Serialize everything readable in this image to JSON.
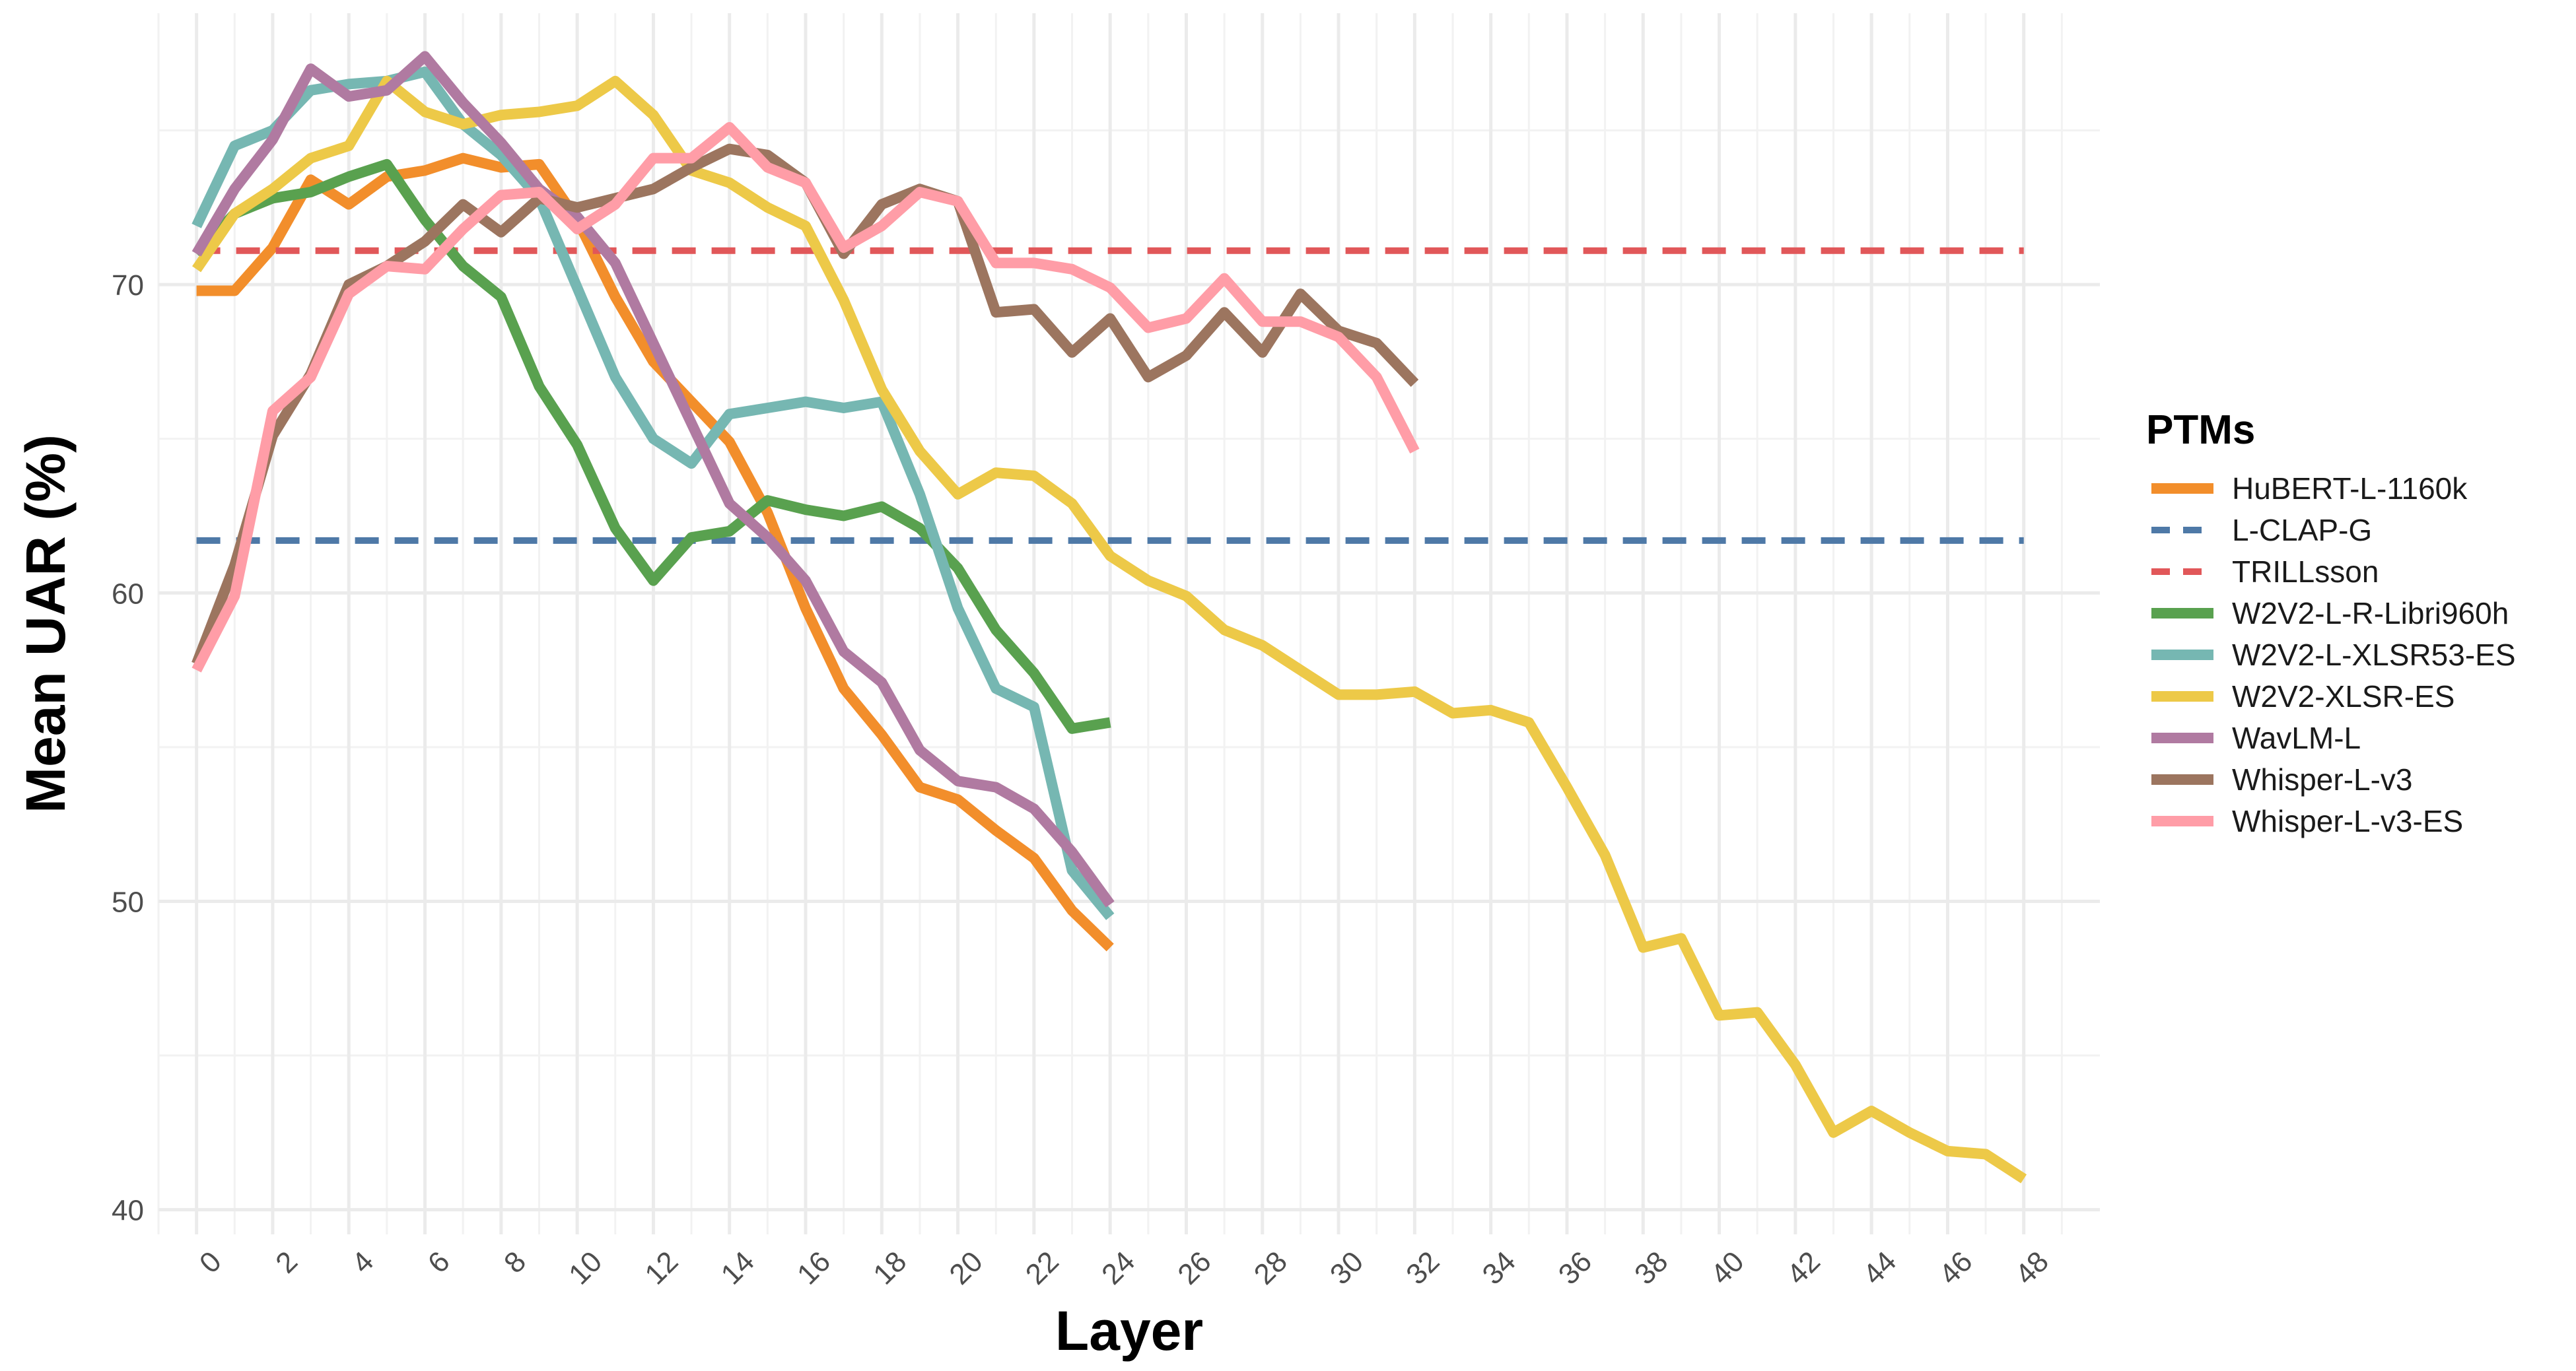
{
  "chart_data": {
    "type": "line",
    "title": "",
    "xlabel": "Layer",
    "ylabel": "Mean UAR (%)",
    "xlim": [
      -1,
      50
    ],
    "ylim": [
      39.2,
      78.8
    ],
    "x_ticks": [
      0,
      2,
      4,
      6,
      8,
      10,
      12,
      14,
      16,
      18,
      20,
      22,
      24,
      26,
      28,
      30,
      32,
      34,
      36,
      38,
      40,
      42,
      44,
      46,
      48
    ],
    "x_tick_labels": [
      "0",
      "2",
      "4",
      "6",
      "8",
      "10",
      "12",
      "14",
      "16",
      "18",
      "20",
      "22",
      "24",
      "26",
      "28",
      "30",
      "32",
      "34",
      "36",
      "38",
      "40",
      "42",
      "44",
      "46",
      "48"
    ],
    "y_ticks": [
      40,
      50,
      60,
      70
    ],
    "y_tick_labels": [
      "40",
      "50",
      "60",
      "70"
    ],
    "grid": true,
    "legend": {
      "title": "PTMs",
      "position": "right"
    },
    "series": [
      {
        "name": "HuBERT-L-1160k",
        "color": "#F28E2B",
        "style": "solid",
        "x": [
          0,
          1,
          2,
          3,
          4,
          5,
          6,
          7,
          8,
          9,
          10,
          11,
          12,
          13,
          14,
          15,
          16,
          17,
          18,
          19,
          20,
          21,
          22,
          23,
          24
        ],
        "y": [
          69.8,
          69.8,
          71.2,
          73.4,
          72.6,
          73.5,
          73.7,
          74.1,
          73.8,
          73.9,
          72.1,
          69.6,
          67.5,
          66.2,
          64.9,
          62.6,
          59.5,
          56.9,
          55.4,
          53.7,
          53.3,
          52.3,
          51.4,
          49.7,
          48.5
        ]
      },
      {
        "name": "L-CLAP-G",
        "color": "#4E79A7",
        "style": "dashed",
        "x": [
          0,
          48
        ],
        "y": [
          61.7,
          61.7
        ]
      },
      {
        "name": "TRILLsson",
        "color": "#E15759",
        "style": "dashed",
        "x": [
          0,
          48
        ],
        "y": [
          71.1,
          71.1
        ]
      },
      {
        "name": "W2V2-L-R-Libri960h",
        "color": "#59A14F",
        "style": "solid",
        "x": [
          0,
          1,
          2,
          3,
          4,
          5,
          6,
          7,
          8,
          9,
          10,
          11,
          12,
          13,
          14,
          15,
          16,
          17,
          18,
          19,
          20,
          21,
          22,
          23,
          24
        ],
        "y": [
          71.0,
          72.3,
          72.8,
          73.0,
          73.5,
          73.9,
          72.1,
          70.6,
          69.6,
          66.7,
          64.8,
          62.1,
          60.4,
          61.8,
          62.0,
          63.0,
          62.7,
          62.5,
          62.8,
          62.1,
          60.8,
          58.8,
          57.4,
          55.6,
          55.8
        ]
      },
      {
        "name": "W2V2-L-XLSR53-ES",
        "color": "#76B7B2",
        "style": "solid",
        "x": [
          0,
          1,
          2,
          3,
          4,
          5,
          6,
          7,
          8,
          9,
          10,
          11,
          12,
          13,
          14,
          15,
          16,
          17,
          18,
          19,
          20,
          21,
          22,
          23,
          24
        ],
        "y": [
          71.9,
          74.5,
          75.0,
          76.3,
          76.5,
          76.6,
          76.9,
          75.2,
          74.2,
          72.8,
          69.9,
          67.0,
          65.0,
          64.2,
          65.8,
          66.0,
          66.2,
          66.0,
          66.2,
          63.2,
          59.5,
          56.9,
          56.3,
          51.0,
          49.5
        ]
      },
      {
        "name": "W2V2-XLSR-ES",
        "color": "#EDC948",
        "style": "solid",
        "x": [
          0,
          1,
          2,
          3,
          4,
          5,
          6,
          7,
          8,
          9,
          10,
          11,
          12,
          13,
          14,
          15,
          16,
          17,
          18,
          19,
          20,
          21,
          22,
          23,
          24,
          25,
          26,
          27,
          28,
          29,
          30,
          31,
          32,
          33,
          34,
          35,
          36,
          37,
          38,
          39,
          40,
          41,
          42,
          43,
          44,
          45,
          46,
          47,
          48
        ],
        "y": [
          70.5,
          72.3,
          73.1,
          74.1,
          74.5,
          76.6,
          75.6,
          75.2,
          75.5,
          75.6,
          75.8,
          76.6,
          75.5,
          73.7,
          73.3,
          72.5,
          71.9,
          69.5,
          66.6,
          64.6,
          63.2,
          63.9,
          63.8,
          62.9,
          61.2,
          60.4,
          59.9,
          58.8,
          58.3,
          57.5,
          56.7,
          56.7,
          56.8,
          56.1,
          56.2,
          55.8,
          53.7,
          51.5,
          48.5,
          48.8,
          46.3,
          46.4,
          44.7,
          42.5,
          43.2,
          42.5,
          41.9,
          41.8,
          41.0
        ]
      },
      {
        "name": "WavLM-L",
        "color": "#B07AA1",
        "style": "solid",
        "x": [
          0,
          1,
          2,
          3,
          4,
          5,
          6,
          7,
          8,
          9,
          10,
          11,
          12,
          13,
          14,
          15,
          16,
          17,
          18,
          19,
          20,
          21,
          22,
          23,
          24
        ],
        "y": [
          71.0,
          73.1,
          74.7,
          77.0,
          76.1,
          76.3,
          77.4,
          75.9,
          74.6,
          73.1,
          72.2,
          70.7,
          68.1,
          65.5,
          62.9,
          61.8,
          60.4,
          58.1,
          57.1,
          54.9,
          53.9,
          53.7,
          53.0,
          51.6,
          49.9
        ]
      },
      {
        "name": "Whisper-L-v3",
        "color": "#9C755F",
        "style": "solid",
        "x": [
          0,
          1,
          2,
          3,
          4,
          5,
          6,
          7,
          8,
          9,
          10,
          11,
          12,
          13,
          14,
          15,
          16,
          17,
          18,
          19,
          20,
          21,
          22,
          23,
          24,
          25,
          26,
          27,
          28,
          29,
          30,
          31,
          32
        ],
        "y": [
          57.7,
          60.9,
          65.1,
          67.1,
          70.0,
          70.6,
          71.4,
          72.6,
          71.7,
          72.8,
          72.5,
          72.8,
          73.1,
          73.8,
          74.4,
          74.2,
          73.3,
          71.0,
          72.6,
          73.1,
          72.7,
          69.1,
          69.2,
          67.8,
          68.9,
          67.0,
          67.7,
          69.1,
          67.8,
          69.7,
          68.5,
          68.1,
          66.8
        ]
      },
      {
        "name": "Whisper-L-v3-ES",
        "color": "#FF9DA7",
        "style": "solid",
        "x": [
          0,
          1,
          2,
          3,
          4,
          5,
          6,
          7,
          8,
          9,
          10,
          11,
          12,
          13,
          14,
          15,
          16,
          17,
          18,
          19,
          20,
          21,
          22,
          23,
          24,
          25,
          26,
          27,
          28,
          29,
          30,
          31,
          32
        ],
        "y": [
          57.5,
          59.9,
          65.9,
          67.0,
          69.7,
          70.6,
          70.5,
          71.8,
          72.9,
          73.0,
          71.8,
          72.6,
          74.1,
          74.1,
          75.1,
          73.8,
          73.3,
          71.2,
          71.9,
          73.0,
          72.7,
          70.7,
          70.7,
          70.5,
          69.9,
          68.6,
          68.9,
          70.2,
          68.8,
          68.8,
          68.3,
          67.0,
          64.6
        ]
      }
    ]
  }
}
